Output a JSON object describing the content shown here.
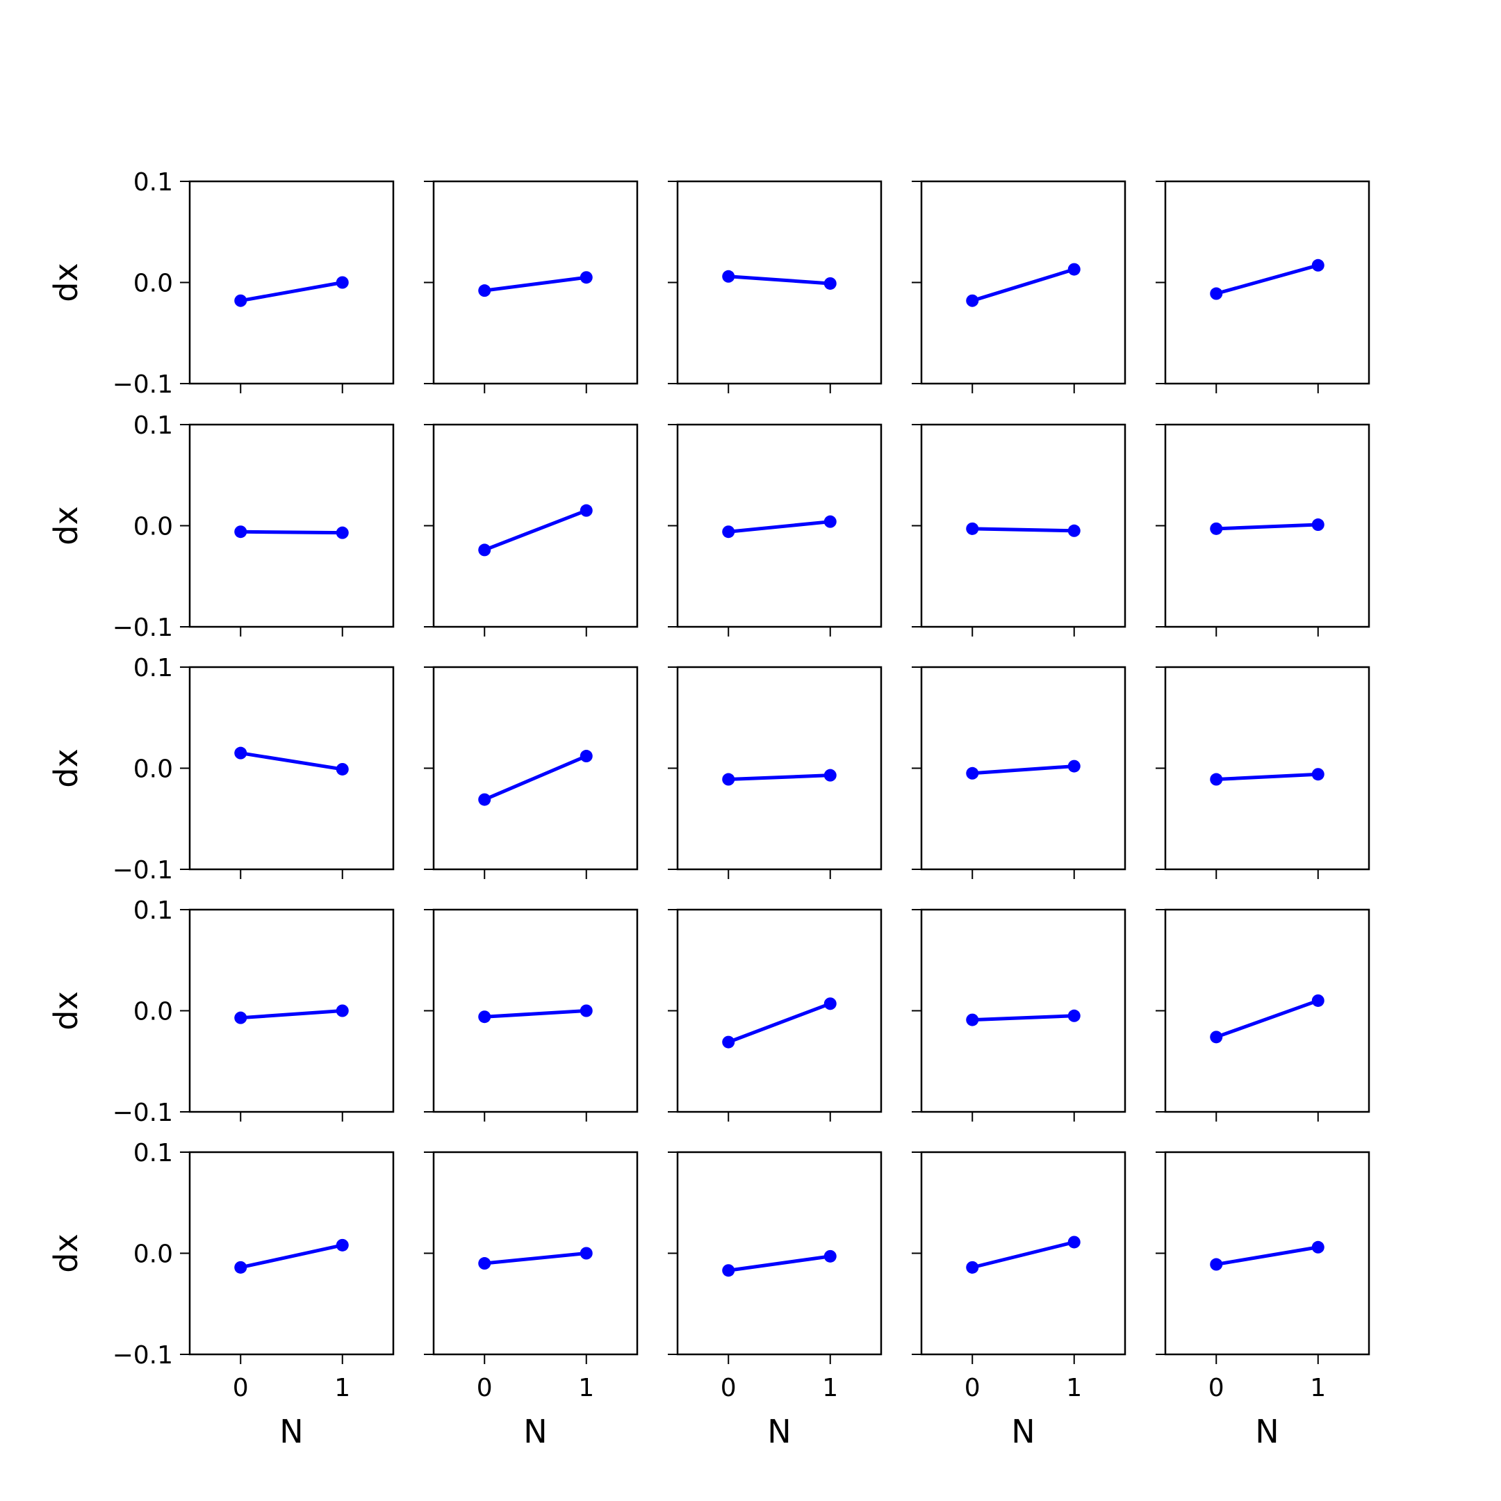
{
  "figure": {
    "line_color": "#0000ff",
    "axis_color": "#000000",
    "background": "#ffffff"
  },
  "axes_labels": {
    "x": "N",
    "y": "dx"
  },
  "ticks": {
    "x": [
      {
        "value": 0,
        "label": "0"
      },
      {
        "value": 1,
        "label": "1"
      }
    ],
    "y": [
      {
        "value": 0.1,
        "label": "0.1"
      },
      {
        "value": 0.0,
        "label": "0.0"
      },
      {
        "value": -0.1,
        "label": "−0.1"
      }
    ]
  },
  "chart_data": {
    "type": "line",
    "layout": "grid",
    "rows": 5,
    "cols": 5,
    "x": [
      0,
      1
    ],
    "xlim": [
      -0.5,
      1.5
    ],
    "ylim": [
      -0.1,
      0.1
    ],
    "xlabel": "N",
    "ylabel": "dx",
    "grid": false,
    "legend": "none",
    "panels": [
      {
        "row": 0,
        "col": 0,
        "values": [
          -0.018,
          0.0
        ]
      },
      {
        "row": 0,
        "col": 1,
        "values": [
          -0.008,
          0.005
        ]
      },
      {
        "row": 0,
        "col": 2,
        "values": [
          0.006,
          -0.001
        ]
      },
      {
        "row": 0,
        "col": 3,
        "values": [
          -0.018,
          0.013
        ]
      },
      {
        "row": 0,
        "col": 4,
        "values": [
          -0.011,
          0.017
        ]
      },
      {
        "row": 1,
        "col": 0,
        "values": [
          -0.006,
          -0.007
        ]
      },
      {
        "row": 1,
        "col": 1,
        "values": [
          -0.024,
          0.015
        ]
      },
      {
        "row": 1,
        "col": 2,
        "values": [
          -0.006,
          0.004
        ]
      },
      {
        "row": 1,
        "col": 3,
        "values": [
          -0.003,
          -0.005
        ]
      },
      {
        "row": 1,
        "col": 4,
        "values": [
          -0.003,
          0.001
        ]
      },
      {
        "row": 2,
        "col": 0,
        "values": [
          0.015,
          -0.001
        ]
      },
      {
        "row": 2,
        "col": 1,
        "values": [
          -0.031,
          0.012
        ]
      },
      {
        "row": 2,
        "col": 2,
        "values": [
          -0.011,
          -0.007
        ]
      },
      {
        "row": 2,
        "col": 3,
        "values": [
          -0.005,
          0.002
        ]
      },
      {
        "row": 2,
        "col": 4,
        "values": [
          -0.011,
          -0.006
        ]
      },
      {
        "row": 3,
        "col": 0,
        "values": [
          -0.007,
          0.0
        ]
      },
      {
        "row": 3,
        "col": 1,
        "values": [
          -0.006,
          0.0
        ]
      },
      {
        "row": 3,
        "col": 2,
        "values": [
          -0.031,
          0.007
        ]
      },
      {
        "row": 3,
        "col": 3,
        "values": [
          -0.009,
          -0.005
        ]
      },
      {
        "row": 3,
        "col": 4,
        "values": [
          -0.026,
          0.01
        ]
      },
      {
        "row": 4,
        "col": 0,
        "values": [
          -0.014,
          0.008
        ]
      },
      {
        "row": 4,
        "col": 1,
        "values": [
          -0.01,
          0.0
        ]
      },
      {
        "row": 4,
        "col": 2,
        "values": [
          -0.017,
          -0.003
        ]
      },
      {
        "row": 4,
        "col": 3,
        "values": [
          -0.014,
          0.011
        ]
      },
      {
        "row": 4,
        "col": 4,
        "values": [
          -0.011,
          0.006
        ]
      }
    ]
  }
}
